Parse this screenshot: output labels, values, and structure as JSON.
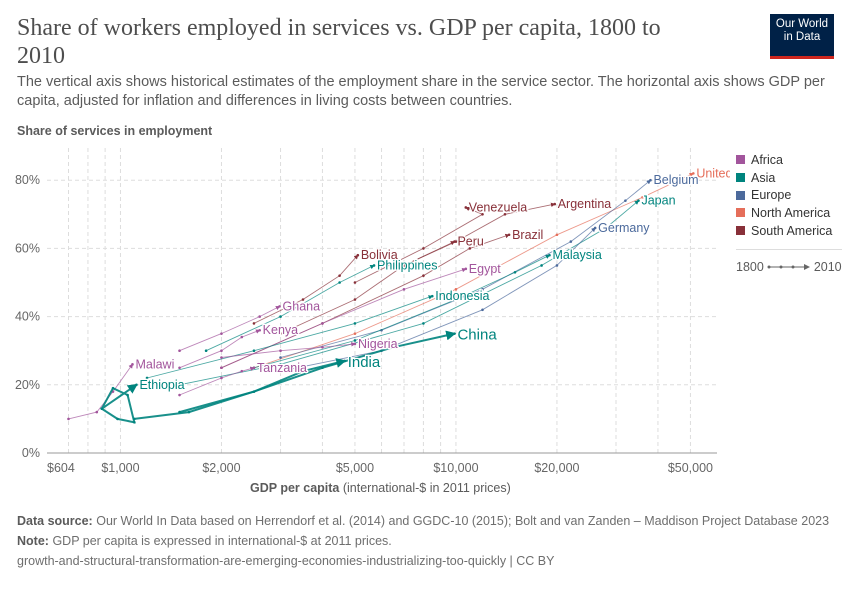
{
  "title": "Share of workers employed in services vs. GDP per capita, 1800 to 2010",
  "subtitle": "The vertical axis shows historical estimates of the employment share in the service sector. The horizontal axis shows GDP per capita, adjusted for inflation and differences in living costs between countries.",
  "logo": {
    "line1": "Our World",
    "line2": "in Data"
  },
  "legend": [
    {
      "name": "Africa",
      "color": "#a2559c"
    },
    {
      "name": "Asia",
      "color": "#00847e"
    },
    {
      "name": "Europe",
      "color": "#4c6a9c"
    },
    {
      "name": "North America",
      "color": "#e56e5a"
    },
    {
      "name": "South America",
      "color": "#883039"
    }
  ],
  "time_legend": {
    "start": "1800",
    "end": "2010"
  },
  "footer": {
    "source_label": "Data source:",
    "source": "Our World In Data based on Herrendorf et al. (2014) and GGDC-10 (2015); Bolt and van Zanden – Maddison Project Database 2023",
    "note_label": "Note:",
    "note": "GDP per capita is expressed in international-$ at 2011 prices.",
    "url": "growth-and-structural-transformation-are-emerging-economies-industrializing-too-quickly | CC BY"
  },
  "chart_data": {
    "type": "scatter",
    "connected": true,
    "ylabel": "Share of services in employment",
    "xlabel_bold": "GDP per capita",
    "xlabel_rest": " (international-$ in 2011 prices)",
    "x_scale": "log",
    "xlim": [
      604,
      60000
    ],
    "ylim": [
      0,
      85
    ],
    "grid": true,
    "x_ticks": [
      {
        "v": 604,
        "label": "$604"
      },
      {
        "v": 1000,
        "label": "$1,000"
      },
      {
        "v": 2000,
        "label": "$2,000"
      },
      {
        "v": 5000,
        "label": "$5,000"
      },
      {
        "v": 10000,
        "label": "$10,000"
      },
      {
        "v": 20000,
        "label": "$20,000"
      },
      {
        "v": 50000,
        "label": "$50,000"
      }
    ],
    "y_ticks": [
      {
        "v": 0,
        "label": "0%"
      },
      {
        "v": 20,
        "label": "20%"
      },
      {
        "v": 40,
        "label": "40%"
      },
      {
        "v": 60,
        "label": "60%"
      },
      {
        "v": 80,
        "label": "80%"
      }
    ],
    "series": [
      {
        "name": "United States",
        "region": "North America",
        "points": [
          [
            2500,
            25
          ],
          [
            5000,
            35
          ],
          [
            10000,
            48
          ],
          [
            20000,
            64
          ],
          [
            36000,
            75
          ],
          [
            51000,
            82
          ]
        ]
      },
      {
        "name": "Belgium",
        "region": "Europe",
        "points": [
          [
            3000,
            28
          ],
          [
            6000,
            36
          ],
          [
            12000,
            48
          ],
          [
            22000,
            62
          ],
          [
            32000,
            74
          ],
          [
            38000,
            80
          ]
        ]
      },
      {
        "name": "Japan",
        "region": "Asia",
        "points": [
          [
            1500,
            20
          ],
          [
            3000,
            26
          ],
          [
            8000,
            38
          ],
          [
            18000,
            55
          ],
          [
            28000,
            66
          ],
          [
            35000,
            74
          ]
        ]
      },
      {
        "name": "Germany",
        "region": "Europe",
        "points": [
          [
            3000,
            24
          ],
          [
            6000,
            30
          ],
          [
            12000,
            42
          ],
          [
            20000,
            55
          ],
          [
            26000,
            66
          ]
        ]
      },
      {
        "name": "Malaysia",
        "region": "Asia",
        "points": [
          [
            2500,
            25
          ],
          [
            5000,
            33
          ],
          [
            10000,
            45
          ],
          [
            15000,
            53
          ],
          [
            19000,
            58
          ]
        ]
      },
      {
        "name": "Argentina",
        "region": "South America",
        "points": [
          [
            7000,
            55
          ],
          [
            10000,
            62
          ],
          [
            14000,
            70
          ],
          [
            19700,
            73
          ]
        ]
      },
      {
        "name": "Venezuela",
        "region": "South America",
        "points": [
          [
            5000,
            50
          ],
          [
            8000,
            60
          ],
          [
            12000,
            70
          ],
          [
            10700,
            72
          ]
        ]
      },
      {
        "name": "Brazil",
        "region": "South America",
        "points": [
          [
            2000,
            25
          ],
          [
            4000,
            38
          ],
          [
            8000,
            52
          ],
          [
            11000,
            60
          ],
          [
            14400,
            64
          ]
        ]
      },
      {
        "name": "Peru",
        "region": "South America",
        "points": [
          [
            3000,
            35
          ],
          [
            5000,
            45
          ],
          [
            7000,
            55
          ],
          [
            9900,
            62
          ]
        ]
      },
      {
        "name": "Egypt",
        "region": "Africa",
        "points": [
          [
            2000,
            25
          ],
          [
            4000,
            38
          ],
          [
            7000,
            48
          ],
          [
            10700,
            54
          ]
        ]
      },
      {
        "name": "Philippines",
        "region": "Asia",
        "points": [
          [
            1800,
            30
          ],
          [
            3000,
            40
          ],
          [
            4500,
            50
          ],
          [
            5700,
            55
          ]
        ]
      },
      {
        "name": "Bolivia",
        "region": "South America",
        "points": [
          [
            2500,
            38
          ],
          [
            3500,
            45
          ],
          [
            4500,
            52
          ],
          [
            5100,
            58
          ]
        ]
      },
      {
        "name": "Indonesia",
        "region": "Asia",
        "points": [
          [
            1200,
            22
          ],
          [
            2500,
            30
          ],
          [
            5000,
            38
          ],
          [
            8500,
            46
          ]
        ]
      },
      {
        "name": "China",
        "region": "Asia",
        "points": [
          [
            1500,
            12
          ],
          [
            2500,
            18
          ],
          [
            4000,
            25
          ],
          [
            6500,
            31
          ],
          [
            9900,
            35
          ]
        ]
      },
      {
        "name": "Ghana",
        "region": "Africa",
        "points": [
          [
            1500,
            30
          ],
          [
            2000,
            35
          ],
          [
            2600,
            40
          ],
          [
            2980,
            43
          ]
        ]
      },
      {
        "name": "Kenya",
        "region": "Africa",
        "points": [
          [
            1500,
            25
          ],
          [
            2000,
            30
          ],
          [
            2300,
            34
          ],
          [
            2600,
            36
          ]
        ]
      },
      {
        "name": "Nigeria",
        "region": "Africa",
        "points": [
          [
            2000,
            28
          ],
          [
            3000,
            30
          ],
          [
            4000,
            31
          ],
          [
            5000,
            32
          ]
        ]
      },
      {
        "name": "India",
        "region": "Asia",
        "points": [
          [
            1100,
            10
          ],
          [
            1600,
            12
          ],
          [
            2500,
            18
          ],
          [
            3500,
            24
          ],
          [
            4660,
            27
          ]
        ]
      },
      {
        "name": "Tanzania",
        "region": "Africa",
        "points": [
          [
            1500,
            17
          ],
          [
            2000,
            22
          ],
          [
            2300,
            24
          ],
          [
            2500,
            25
          ]
        ]
      },
      {
        "name": "Malawi",
        "region": "Africa",
        "points": [
          [
            700,
            10
          ],
          [
            850,
            12
          ],
          [
            950,
            18
          ],
          [
            1086,
            26
          ]
        ]
      },
      {
        "name": "Ethiopia",
        "region": "Asia",
        "points": [
          [
            880,
            13
          ],
          [
            950,
            19
          ],
          [
            1050,
            17
          ],
          [
            1100,
            9
          ],
          [
            980,
            10
          ],
          [
            880,
            13
          ],
          [
            1116,
            20
          ]
        ]
      }
    ]
  }
}
